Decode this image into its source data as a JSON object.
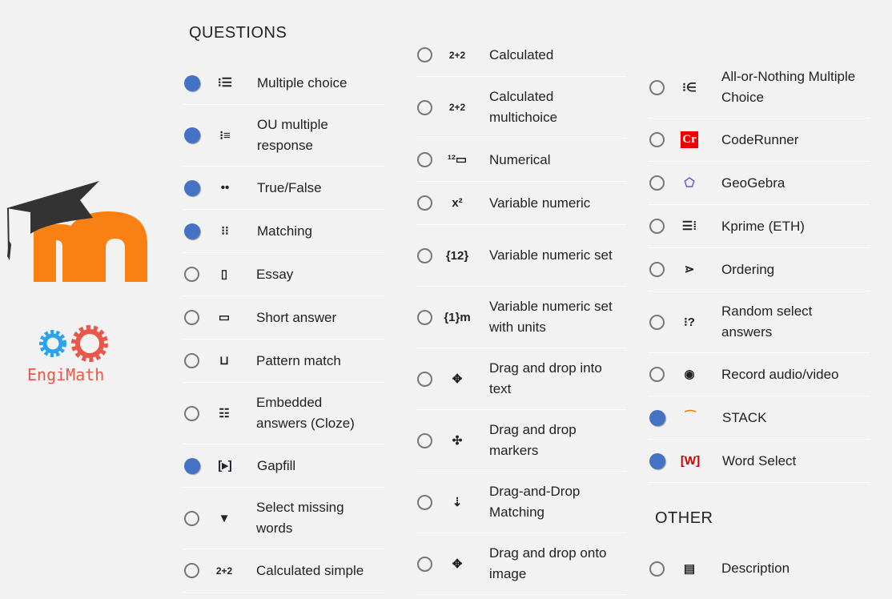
{
  "headings": {
    "questions": "QUESTIONS",
    "other": "OTHER"
  },
  "logos": {
    "moodle": "moodle",
    "engimath": "EngiMath"
  },
  "colors": {
    "selected": "#4472c4",
    "moodle_orange": "#f98012",
    "gear_blue": "#29a3f0",
    "gear_red": "#e8574a"
  },
  "columns": [
    [
      {
        "label": "Multiple choice",
        "icon": "list-icon",
        "glyph": "⁝☰",
        "selected": true
      },
      {
        "label": "OU multiple response",
        "icon": "checklist-icon",
        "glyph": "⁝≡",
        "selected": true,
        "two": true
      },
      {
        "label": "True/False",
        "icon": "two-dots-icon",
        "glyph": "••",
        "selected": true
      },
      {
        "label": "Matching",
        "icon": "matching-icon",
        "glyph": "⁝⁝",
        "selected": true
      },
      {
        "label": "Essay",
        "icon": "document-icon",
        "glyph": "▯",
        "selected": false
      },
      {
        "label": "Short answer",
        "icon": "textbox-icon",
        "glyph": "▭",
        "selected": false
      },
      {
        "label": "Pattern match",
        "icon": "pattern-icon",
        "glyph": "⊔",
        "selected": false
      },
      {
        "label": "Embedded answers (Cloze)",
        "icon": "cloze-icon",
        "glyph": "☷",
        "selected": false,
        "two": true
      },
      {
        "label": "Gapfill",
        "icon": "gapfill-icon",
        "glyph": "[▸]",
        "selected": true
      },
      {
        "label": "Select missing words",
        "icon": "dropdown-icon",
        "glyph": "▼",
        "selected": false,
        "two": true
      },
      {
        "label": "Calculated simple",
        "icon": "calc-icon",
        "glyph": "2+2",
        "selected": false
      }
    ],
    [
      {
        "label": "Calculated",
        "icon": "calc-icon",
        "glyph": "2+2",
        "selected": false
      },
      {
        "label": "Calculated multichoice",
        "icon": "calc-icon",
        "glyph": "2+2",
        "selected": false,
        "two": true
      },
      {
        "label": "Numerical",
        "icon": "numerical-icon",
        "glyph": "¹²▭",
        "selected": false
      },
      {
        "label": "Variable numeric",
        "icon": "variable-numeric-icon",
        "glyph": "x²",
        "selected": false
      },
      {
        "label": "Variable numeric set",
        "icon": "variable-set-icon",
        "glyph": "{12}",
        "selected": false,
        "two": true
      },
      {
        "label": "Variable numeric set with units",
        "icon": "variable-units-icon",
        "glyph": "{1}m",
        "selected": false,
        "two": true
      },
      {
        "label": "Drag and drop into text",
        "icon": "move-icon",
        "glyph": "✥",
        "selected": false,
        "two": true
      },
      {
        "label": "Drag and drop markers",
        "icon": "markers-icon",
        "glyph": "✣",
        "selected": false,
        "two": true
      },
      {
        "label": "Drag-and-Drop Matching",
        "icon": "dd-matching-icon",
        "glyph": "⇣",
        "selected": false,
        "two": true
      },
      {
        "label": "Drag and drop onto image",
        "icon": "move-arrows-icon",
        "glyph": "✥",
        "selected": false,
        "two": true
      }
    ],
    [
      {
        "label": "All-or-Nothing Multiple Choice",
        "icon": "all-or-nothing-icon",
        "glyph": "⁝∈",
        "selected": false,
        "two": true
      },
      {
        "label": "CodeRunner",
        "icon": "coderunner-icon",
        "glyph": "Cr",
        "selected": false
      },
      {
        "label": "GeoGebra",
        "icon": "geogebra-icon",
        "glyph": "⬠",
        "selected": false
      },
      {
        "label": "Kprime (ETH)",
        "icon": "kprime-icon",
        "glyph": "☰⁞",
        "selected": false
      },
      {
        "label": "Ordering",
        "icon": "ordering-icon",
        "glyph": "⋗",
        "selected": false
      },
      {
        "label": "Random select answers",
        "icon": "random-icon",
        "glyph": "⁝?",
        "selected": false,
        "two": true
      },
      {
        "label": "Record audio/video",
        "icon": "record-icon",
        "glyph": "◉",
        "selected": false
      },
      {
        "label": "STACK",
        "icon": "stack-icon",
        "glyph": "⁀",
        "selected": true
      },
      {
        "label": "Word Select",
        "icon": "word-select-icon",
        "glyph": "[W]",
        "selected": true
      }
    ]
  ],
  "other": [
    {
      "label": "Description",
      "icon": "description-icon",
      "glyph": "▤",
      "selected": false
    }
  ]
}
